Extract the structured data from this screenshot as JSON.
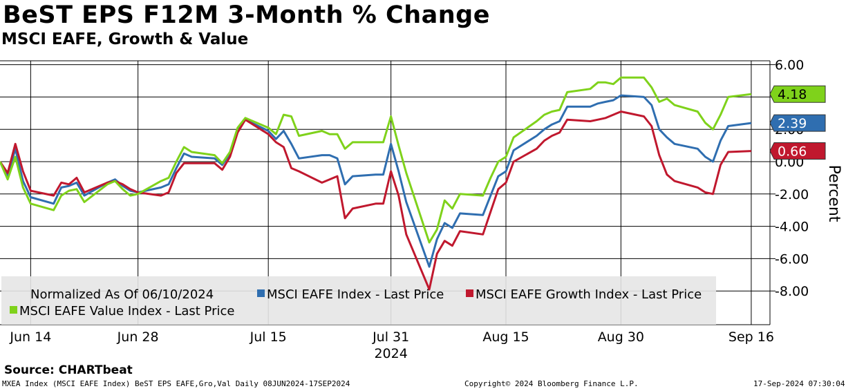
{
  "header": {
    "title": "BeST EPS F12M 3-Month % Change",
    "subtitle": "MSCI EAFE, Growth & Value"
  },
  "footer": {
    "source": "Source: CHARTbeat",
    "ticker_info": "MXEA Index (MSCI EAFE Index) BeST EPS EAFE,Gro,Val  Daily 08JUN2024-17SEP2024",
    "copyright": "Copyright© 2024 Bloomberg Finance L.P.",
    "timestamp": "17-Sep-2024 07:30:04"
  },
  "colors": {
    "index": "#2f6eb0",
    "growth": "#c0182e",
    "value": "#7fd21b"
  },
  "chart_data": {
    "type": "line",
    "title": "BeST EPS F12M 3-Month % Change",
    "subtitle": "MSCI EAFE, Growth & Value",
    "ylabel": "Percent",
    "ylim": [
      -10,
      6.5
    ],
    "yticks": [
      "6.00",
      "4.00",
      "2.00",
      "0.00",
      "-2.00",
      "-4.00",
      "-6.00",
      "-8.00"
    ],
    "ytick_values": [
      6,
      4,
      2,
      0,
      -2,
      -4,
      -6,
      -8
    ],
    "date_range": [
      "2024-06-10",
      "2024-09-17"
    ],
    "x_labels": [
      {
        "label": "Jun 14",
        "date": "2024-06-14"
      },
      {
        "label": "Jun 28",
        "date": "2024-06-28"
      },
      {
        "label": "Jul 15",
        "date": "2024-07-15"
      },
      {
        "label": "Jul 31",
        "date": "2024-07-31"
      },
      {
        "label": "Aug 15",
        "date": "2024-08-15"
      },
      {
        "label": "Aug 30",
        "date": "2024-08-30"
      },
      {
        "label": "Sep 16",
        "date": "2024-09-16"
      }
    ],
    "year_label": "2024",
    "grid": true,
    "legend": {
      "placement": "bottom-left",
      "note": "Normalized As Of 06/10/2024",
      "entries": [
        "MSCI EAFE Index - Last Price",
        "MSCI EAFE Growth Index - Last Price",
        "MSCI EAFE Value Index - Last Price"
      ]
    },
    "series": [
      {
        "key": "index",
        "name": "MSCI EAFE Index - Last Price",
        "last_label": "2.39",
        "points": [
          [
            "2024-06-10",
            0.0
          ],
          [
            "2024-06-11",
            -0.9
          ],
          [
            "2024-06-12",
            0.8
          ],
          [
            "2024-06-13",
            -1.2
          ],
          [
            "2024-06-14",
            -2.2
          ],
          [
            "2024-06-17",
            -2.6
          ],
          [
            "2024-06-18",
            -1.6
          ],
          [
            "2024-06-19",
            -1.5
          ],
          [
            "2024-06-20",
            -1.3
          ],
          [
            "2024-06-21",
            -2.1
          ],
          [
            "2024-06-24",
            -1.3
          ],
          [
            "2024-06-25",
            -1.1
          ],
          [
            "2024-06-26",
            -1.5
          ],
          [
            "2024-06-27",
            -1.8
          ],
          [
            "2024-06-28",
            -1.9
          ],
          [
            "2024-07-01",
            -1.6
          ],
          [
            "2024-07-02",
            -1.4
          ],
          [
            "2024-07-03",
            -0.4
          ],
          [
            "2024-07-04",
            0.5
          ],
          [
            "2024-07-05",
            0.3
          ],
          [
            "2024-07-08",
            0.2
          ],
          [
            "2024-07-09",
            -0.2
          ],
          [
            "2024-07-10",
            0.5
          ],
          [
            "2024-07-11",
            1.9
          ],
          [
            "2024-07-12",
            2.6
          ],
          [
            "2024-07-15",
            1.9
          ],
          [
            "2024-07-16",
            1.4
          ],
          [
            "2024-07-17",
            1.9
          ],
          [
            "2024-07-18",
            1.1
          ],
          [
            "2024-07-19",
            0.2
          ],
          [
            "2024-07-22",
            0.4
          ],
          [
            "2024-07-23",
            0.4
          ],
          [
            "2024-07-24",
            0.2
          ],
          [
            "2024-07-25",
            -1.4
          ],
          [
            "2024-07-26",
            -0.9
          ],
          [
            "2024-07-29",
            -0.8
          ],
          [
            "2024-07-30",
            -0.8
          ],
          [
            "2024-07-31",
            1.1
          ],
          [
            "2024-08-01",
            -0.6
          ],
          [
            "2024-08-02",
            -2.5
          ],
          [
            "2024-08-05",
            -6.5
          ],
          [
            "2024-08-06",
            -4.8
          ],
          [
            "2024-08-07",
            -3.8
          ],
          [
            "2024-08-08",
            -4.1
          ],
          [
            "2024-08-09",
            -3.2
          ],
          [
            "2024-08-12",
            -3.3
          ],
          [
            "2024-08-13",
            -2.1
          ],
          [
            "2024-08-14",
            -0.9
          ],
          [
            "2024-08-15",
            -0.6
          ],
          [
            "2024-08-16",
            0.7
          ],
          [
            "2024-08-19",
            1.6
          ],
          [
            "2024-08-20",
            2.0
          ],
          [
            "2024-08-21",
            2.3
          ],
          [
            "2024-08-22",
            2.5
          ],
          [
            "2024-08-23",
            3.4
          ],
          [
            "2024-08-26",
            3.4
          ],
          [
            "2024-08-27",
            3.6
          ],
          [
            "2024-08-28",
            3.7
          ],
          [
            "2024-08-29",
            3.8
          ],
          [
            "2024-08-30",
            4.1
          ],
          [
            "2024-09-02",
            4.0
          ],
          [
            "2024-09-03",
            3.5
          ],
          [
            "2024-09-04",
            2.0
          ],
          [
            "2024-09-05",
            1.5
          ],
          [
            "2024-09-06",
            1.1
          ],
          [
            "2024-09-09",
            0.8
          ],
          [
            "2024-09-10",
            0.3
          ],
          [
            "2024-09-11",
            0.0
          ],
          [
            "2024-09-12",
            1.3
          ],
          [
            "2024-09-13",
            2.2
          ],
          [
            "2024-09-16",
            2.39
          ]
        ]
      },
      {
        "key": "growth",
        "name": "MSCI EAFE Growth Index - Last Price",
        "last_label": "0.66",
        "points": [
          [
            "2024-06-10",
            0.0
          ],
          [
            "2024-06-11",
            -0.7
          ],
          [
            "2024-06-12",
            1.1
          ],
          [
            "2024-06-13",
            -0.6
          ],
          [
            "2024-06-14",
            -1.8
          ],
          [
            "2024-06-17",
            -2.1
          ],
          [
            "2024-06-18",
            -1.3
          ],
          [
            "2024-06-19",
            -1.4
          ],
          [
            "2024-06-20",
            -1.0
          ],
          [
            "2024-06-21",
            -1.9
          ],
          [
            "2024-06-24",
            -1.3
          ],
          [
            "2024-06-25",
            -1.2
          ],
          [
            "2024-06-26",
            -1.4
          ],
          [
            "2024-06-27",
            -1.7
          ],
          [
            "2024-06-28",
            -1.9
          ],
          [
            "2024-07-01",
            -2.1
          ],
          [
            "2024-07-02",
            -1.9
          ],
          [
            "2024-07-03",
            -0.7
          ],
          [
            "2024-07-04",
            -0.1
          ],
          [
            "2024-07-05",
            -0.1
          ],
          [
            "2024-07-08",
            -0.1
          ],
          [
            "2024-07-09",
            -0.5
          ],
          [
            "2024-07-10",
            0.3
          ],
          [
            "2024-07-11",
            1.8
          ],
          [
            "2024-07-12",
            2.6
          ],
          [
            "2024-07-15",
            1.7
          ],
          [
            "2024-07-16",
            1.2
          ],
          [
            "2024-07-17",
            0.9
          ],
          [
            "2024-07-18",
            -0.4
          ],
          [
            "2024-07-19",
            -0.6
          ],
          [
            "2024-07-22",
            -1.3
          ],
          [
            "2024-07-23",
            -1.1
          ],
          [
            "2024-07-24",
            -0.9
          ],
          [
            "2024-07-25",
            -3.5
          ],
          [
            "2024-07-26",
            -2.9
          ],
          [
            "2024-07-29",
            -2.6
          ],
          [
            "2024-07-30",
            -2.6
          ],
          [
            "2024-07-31",
            -0.6
          ],
          [
            "2024-08-01",
            -2.1
          ],
          [
            "2024-08-02",
            -4.5
          ],
          [
            "2024-08-05",
            -7.9
          ],
          [
            "2024-08-06",
            -5.7
          ],
          [
            "2024-08-07",
            -4.9
          ],
          [
            "2024-08-08",
            -5.2
          ],
          [
            "2024-08-09",
            -4.3
          ],
          [
            "2024-08-12",
            -4.5
          ],
          [
            "2024-08-13",
            -3.1
          ],
          [
            "2024-08-14",
            -1.7
          ],
          [
            "2024-08-15",
            -1.3
          ],
          [
            "2024-08-16",
            0.0
          ],
          [
            "2024-08-19",
            0.8
          ],
          [
            "2024-08-20",
            1.3
          ],
          [
            "2024-08-21",
            1.6
          ],
          [
            "2024-08-22",
            1.8
          ],
          [
            "2024-08-23",
            2.6
          ],
          [
            "2024-08-26",
            2.5
          ],
          [
            "2024-08-27",
            2.6
          ],
          [
            "2024-08-28",
            2.7
          ],
          [
            "2024-08-29",
            2.9
          ],
          [
            "2024-08-30",
            3.1
          ],
          [
            "2024-09-02",
            2.8
          ],
          [
            "2024-09-03",
            2.2
          ],
          [
            "2024-09-04",
            0.4
          ],
          [
            "2024-09-05",
            -0.8
          ],
          [
            "2024-09-06",
            -1.2
          ],
          [
            "2024-09-09",
            -1.6
          ],
          [
            "2024-09-10",
            -1.9
          ],
          [
            "2024-09-11",
            -2.0
          ],
          [
            "2024-09-12",
            -0.2
          ],
          [
            "2024-09-13",
            0.6
          ],
          [
            "2024-09-16",
            0.66
          ]
        ]
      },
      {
        "key": "value",
        "name": "MSCI EAFE Value Index - Last Price",
        "last_label": "4.18",
        "points": [
          [
            "2024-06-10",
            0.0
          ],
          [
            "2024-06-11",
            -1.1
          ],
          [
            "2024-06-12",
            0.3
          ],
          [
            "2024-06-13",
            -1.6
          ],
          [
            "2024-06-14",
            -2.6
          ],
          [
            "2024-06-17",
            -3.0
          ],
          [
            "2024-06-18",
            -2.1
          ],
          [
            "2024-06-19",
            -1.8
          ],
          [
            "2024-06-20",
            -1.7
          ],
          [
            "2024-06-21",
            -2.5
          ],
          [
            "2024-06-24",
            -1.4
          ],
          [
            "2024-06-25",
            -1.2
          ],
          [
            "2024-06-26",
            -1.7
          ],
          [
            "2024-06-27",
            -2.1
          ],
          [
            "2024-06-28",
            -2.0
          ],
          [
            "2024-07-01",
            -1.2
          ],
          [
            "2024-07-02",
            -1.0
          ],
          [
            "2024-07-03",
            0.0
          ],
          [
            "2024-07-04",
            0.9
          ],
          [
            "2024-07-05",
            0.6
          ],
          [
            "2024-07-08",
            0.4
          ],
          [
            "2024-07-09",
            -0.1
          ],
          [
            "2024-07-10",
            0.6
          ],
          [
            "2024-07-11",
            2.1
          ],
          [
            "2024-07-12",
            2.7
          ],
          [
            "2024-07-15",
            2.1
          ],
          [
            "2024-07-16",
            1.7
          ],
          [
            "2024-07-17",
            2.9
          ],
          [
            "2024-07-18",
            2.8
          ],
          [
            "2024-07-19",
            1.6
          ],
          [
            "2024-07-22",
            1.9
          ],
          [
            "2024-07-23",
            1.7
          ],
          [
            "2024-07-24",
            1.7
          ],
          [
            "2024-07-25",
            0.8
          ],
          [
            "2024-07-26",
            1.2
          ],
          [
            "2024-07-29",
            1.2
          ],
          [
            "2024-07-30",
            1.2
          ],
          [
            "2024-07-31",
            2.8
          ],
          [
            "2024-08-01",
            1.0
          ],
          [
            "2024-08-02",
            -0.7
          ],
          [
            "2024-08-05",
            -5.0
          ],
          [
            "2024-08-06",
            -4.2
          ],
          [
            "2024-08-07",
            -2.4
          ],
          [
            "2024-08-08",
            -2.9
          ],
          [
            "2024-08-09",
            -2.0
          ],
          [
            "2024-08-12",
            -2.1
          ],
          [
            "2024-08-13",
            -1.0
          ],
          [
            "2024-08-14",
            0.0
          ],
          [
            "2024-08-15",
            0.3
          ],
          [
            "2024-08-16",
            1.5
          ],
          [
            "2024-08-19",
            2.5
          ],
          [
            "2024-08-20",
            2.9
          ],
          [
            "2024-08-21",
            3.1
          ],
          [
            "2024-08-22",
            3.2
          ],
          [
            "2024-08-23",
            4.3
          ],
          [
            "2024-08-26",
            4.5
          ],
          [
            "2024-08-27",
            4.9
          ],
          [
            "2024-08-28",
            4.9
          ],
          [
            "2024-08-29",
            4.8
          ],
          [
            "2024-08-30",
            5.2
          ],
          [
            "2024-09-02",
            5.2
          ],
          [
            "2024-09-03",
            4.6
          ],
          [
            "2024-09-04",
            3.7
          ],
          [
            "2024-09-05",
            3.9
          ],
          [
            "2024-09-06",
            3.5
          ],
          [
            "2024-09-09",
            3.1
          ],
          [
            "2024-09-10",
            2.4
          ],
          [
            "2024-09-11",
            2.0
          ],
          [
            "2024-09-12",
            2.9
          ],
          [
            "2024-09-13",
            4.0
          ],
          [
            "2024-09-16",
            4.18
          ]
        ]
      }
    ]
  }
}
